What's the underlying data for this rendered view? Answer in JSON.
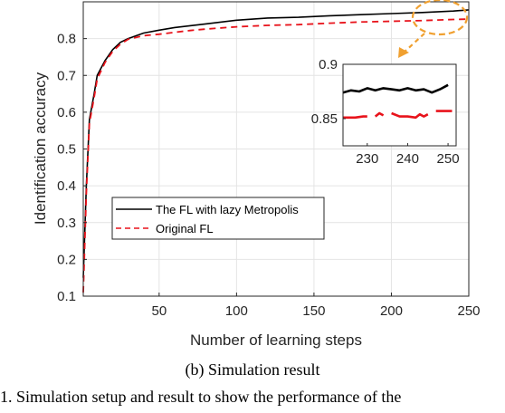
{
  "caption": "(b)  Simulation result",
  "footer_text": "1.  Simulation setup and result to show the performance of the",
  "colors": {
    "lazy": "#000000",
    "orig": "#e8131b",
    "highlight": "#f0a030",
    "axis": "#262626"
  },
  "chart_data": {
    "type": "line",
    "xlabel": "Number of learning steps",
    "ylabel": "Identification accuracy",
    "xlim": [
      1,
      250
    ],
    "ylim": [
      0.1,
      0.9
    ],
    "xticks": [
      50,
      100,
      150,
      200,
      250
    ],
    "yticks": [
      0.1,
      0.2,
      0.3,
      0.4,
      0.5,
      0.6,
      0.7,
      0.8
    ],
    "legend_position": "lower-left",
    "series": [
      {
        "name": "The FL with lazy Metropolis",
        "color": "#000000",
        "style": "solid",
        "points": [
          [
            1,
            0.15
          ],
          [
            3,
            0.4
          ],
          [
            5,
            0.58
          ],
          [
            8,
            0.65
          ],
          [
            10,
            0.7
          ],
          [
            15,
            0.74
          ],
          [
            20,
            0.77
          ],
          [
            25,
            0.79
          ],
          [
            30,
            0.8
          ],
          [
            40,
            0.815
          ],
          [
            50,
            0.823
          ],
          [
            60,
            0.83
          ],
          [
            70,
            0.835
          ],
          [
            80,
            0.84
          ],
          [
            100,
            0.85
          ],
          [
            120,
            0.856
          ],
          [
            140,
            0.858
          ],
          [
            160,
            0.862
          ],
          [
            180,
            0.865
          ],
          [
            200,
            0.868
          ],
          [
            220,
            0.871
          ],
          [
            240,
            0.875
          ],
          [
            250,
            0.878
          ]
        ]
      },
      {
        "name": "Original FL",
        "color": "#e8131b",
        "style": "dashed",
        "points": [
          [
            1,
            0.11
          ],
          [
            3,
            0.38
          ],
          [
            5,
            0.57
          ],
          [
            8,
            0.64
          ],
          [
            10,
            0.69
          ],
          [
            15,
            0.735
          ],
          [
            20,
            0.765
          ],
          [
            25,
            0.785
          ],
          [
            30,
            0.798
          ],
          [
            40,
            0.808
          ],
          [
            50,
            0.812
          ],
          [
            60,
            0.817
          ],
          [
            70,
            0.822
          ],
          [
            80,
            0.826
          ],
          [
            100,
            0.832
          ],
          [
            120,
            0.836
          ],
          [
            140,
            0.838
          ],
          [
            160,
            0.842
          ],
          [
            180,
            0.845
          ],
          [
            200,
            0.847
          ],
          [
            220,
            0.849
          ],
          [
            240,
            0.852
          ],
          [
            250,
            0.853
          ]
        ]
      }
    ],
    "inset": {
      "xlim": [
        224,
        252
      ],
      "ylim": [
        0.825,
        0.9
      ],
      "xticks": [
        230,
        240,
        250
      ],
      "yticks": [
        0.85,
        0.9
      ],
      "series": [
        {
          "name": "The FL with lazy Metropolis",
          "points": [
            [
              224,
              0.874
            ],
            [
              226,
              0.876
            ],
            [
              228,
              0.875
            ],
            [
              230,
              0.878
            ],
            [
              232,
              0.876
            ],
            [
              234,
              0.878
            ],
            [
              236,
              0.877
            ],
            [
              238,
              0.876
            ],
            [
              240,
              0.878
            ],
            [
              242,
              0.876
            ],
            [
              244,
              0.877
            ],
            [
              246,
              0.874
            ],
            [
              248,
              0.877
            ],
            [
              250,
              0.881
            ]
          ]
        },
        {
          "name": "Original FL",
          "segments": [
            [
              [
                224,
                0.851
              ],
              [
                227,
                0.851
              ],
              [
                229,
                0.852
              ],
              [
                230,
                0.852
              ]
            ],
            [
              [
                232,
                0.852
              ],
              [
                233,
                0.855
              ],
              [
                234,
                0.853
              ]
            ],
            [
              [
                236,
                0.855
              ],
              [
                238,
                0.852
              ],
              [
                240,
                0.852
              ],
              [
                242,
                0.851
              ],
              [
                243,
                0.854
              ],
              [
                244,
                0.852
              ],
              [
                245,
                0.854
              ]
            ],
            [
              [
                247,
                0.857
              ],
              [
                249,
                0.857
              ],
              [
                251,
                0.857
              ]
            ]
          ]
        }
      ]
    }
  }
}
